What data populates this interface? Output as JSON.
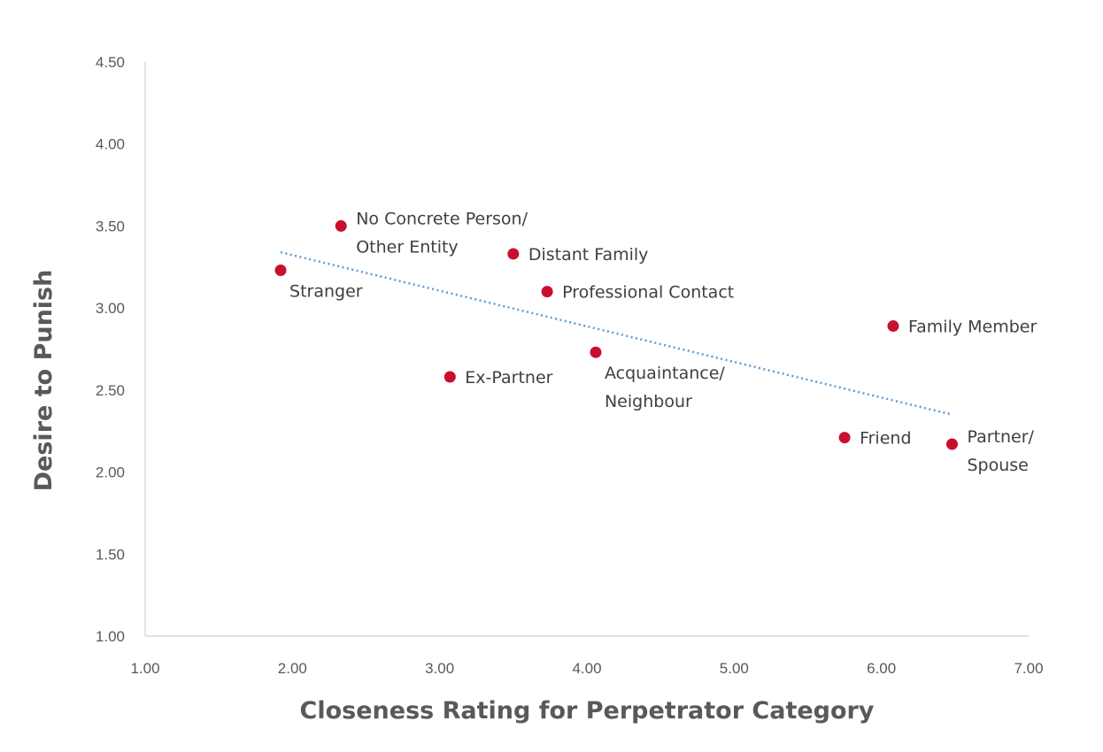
{
  "chart_data": {
    "type": "scatter",
    "xlabel": "Closeness Rating for Perpetrator Category",
    "ylabel": "Desire to Punish",
    "xlim": [
      1.0,
      7.0
    ],
    "ylim": [
      1.0,
      4.5
    ],
    "x_ticks": [
      "1.00",
      "2.00",
      "3.00",
      "4.00",
      "5.00",
      "6.00",
      "7.00"
    ],
    "y_ticks": [
      "1.00",
      "1.50",
      "2.00",
      "2.50",
      "3.00",
      "3.50",
      "4.00",
      "4.50"
    ],
    "grid": false,
    "trendline": {
      "type": "linear",
      "x_start": 1.92,
      "y_start": 3.34,
      "x_end": 6.48,
      "y_end": 2.35,
      "color": "#5b9bd5"
    },
    "marker_color": "#c8102e",
    "points": [
      {
        "x": 1.92,
        "y": 3.23,
        "label": [
          "Stranger"
        ],
        "label_pos": "below-right"
      },
      {
        "x": 2.33,
        "y": 3.5,
        "label": [
          "No Concrete Person/",
          "Other Entity"
        ],
        "label_pos": "right"
      },
      {
        "x": 3.5,
        "y": 3.33,
        "label": [
          "Distant Family"
        ],
        "label_pos": "right"
      },
      {
        "x": 3.73,
        "y": 3.1,
        "label": [
          "Professional Contact"
        ],
        "label_pos": "right"
      },
      {
        "x": 3.07,
        "y": 2.58,
        "label": [
          "Ex-Partner"
        ],
        "label_pos": "right"
      },
      {
        "x": 4.06,
        "y": 2.73,
        "label": [
          "Acquaintance/",
          "Neighbour"
        ],
        "label_pos": "below-right"
      },
      {
        "x": 6.08,
        "y": 2.89,
        "label": [
          "Family Member"
        ],
        "label_pos": "right"
      },
      {
        "x": 5.75,
        "y": 2.21,
        "label": [
          "Friend"
        ],
        "label_pos": "right"
      },
      {
        "x": 6.48,
        "y": 2.17,
        "label": [
          "Partner/",
          "Spouse"
        ],
        "label_pos": "right"
      }
    ]
  }
}
